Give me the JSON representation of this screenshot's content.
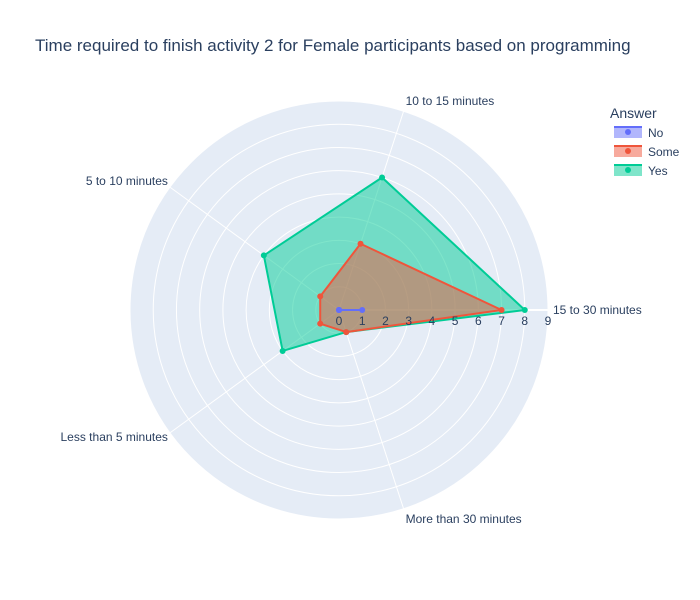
{
  "chart_data": {
    "type": "radar",
    "title": "Time required to finish activity 2 for Female participants based  on programming",
    "theta_labels": [
      "15 to 30 minutes",
      "10 to 15 minutes",
      "5 to 10 minutes",
      "Less than 5 minutes",
      "More than 30 minutes"
    ],
    "radial_range": [
      0,
      9
    ],
    "radial_ticks": [
      "0",
      "1",
      "2",
      "3",
      "4",
      "5",
      "6",
      "7",
      "8",
      "9"
    ],
    "grid": true,
    "legend": {
      "title": "Answer",
      "placement": "top-right"
    },
    "series": [
      {
        "name": "No",
        "color": "#636efa",
        "values": [
          1,
          0,
          0,
          0,
          0
        ]
      },
      {
        "name": "Some",
        "color": "#ef553b",
        "values": [
          7,
          3,
          1,
          1,
          1
        ]
      },
      {
        "name": "Yes",
        "color": "#00cc96",
        "values": [
          8,
          6,
          4,
          3,
          1
        ]
      }
    ],
    "colors": {
      "polar_bg": "#e5ecf6",
      "grid": "#ffffff",
      "text": "#2a3f5f"
    }
  }
}
